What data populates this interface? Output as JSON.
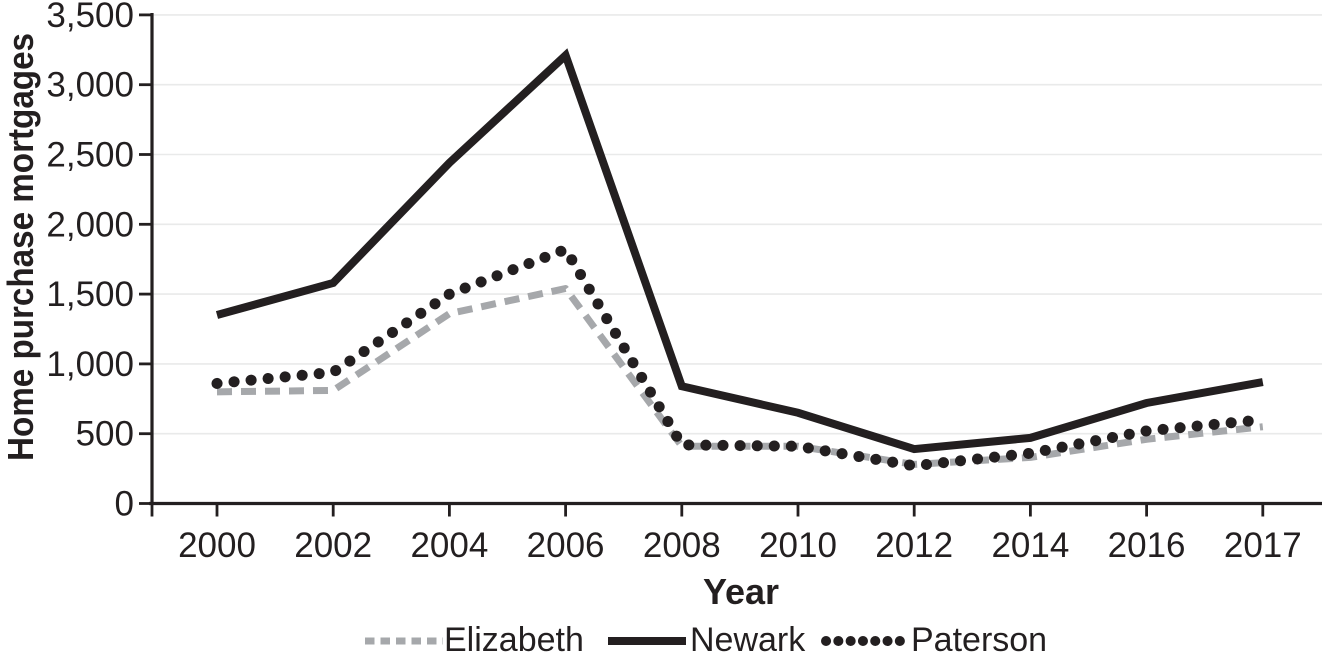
{
  "chart_data": {
    "type": "line",
    "title": "",
    "xlabel": "Year",
    "ylabel": "Home purchase mortgages",
    "categories": [
      "2000",
      "2002",
      "2004",
      "2006",
      "2008",
      "2010",
      "2012",
      "2014",
      "2016",
      "2017"
    ],
    "series": [
      {
        "name": "Elizabeth",
        "style": "dashed",
        "color": "#a6a8ab",
        "values": [
          800,
          810,
          1360,
          1540,
          410,
          410,
          280,
          330,
          460,
          550
        ]
      },
      {
        "name": "Newark",
        "style": "solid",
        "color": "#231f20",
        "values": [
          1350,
          1580,
          2440,
          3210,
          840,
          650,
          390,
          470,
          720,
          870
        ]
      },
      {
        "name": "Paterson",
        "style": "dotted",
        "color": "#231f20",
        "values": [
          860,
          940,
          1500,
          1820,
          420,
          410,
          270,
          360,
          520,
          600
        ]
      }
    ],
    "ylim": [
      0,
      3500
    ],
    "y_ticks": [
      0,
      500,
      1000,
      1500,
      2000,
      2500,
      3000,
      3500
    ],
    "y_tick_labels": [
      "0",
      "500",
      "1,000",
      "1,500",
      "2,000",
      "2,500",
      "3,000",
      "3,500"
    ],
    "grid": "horizontal",
    "legend_position": "bottom",
    "colors": {
      "axis": "#231f20",
      "grid": "#e9eaea",
      "text": "#231f20",
      "elizabeth_gray": "#a6a8ab",
      "line_black": "#231f20"
    }
  }
}
